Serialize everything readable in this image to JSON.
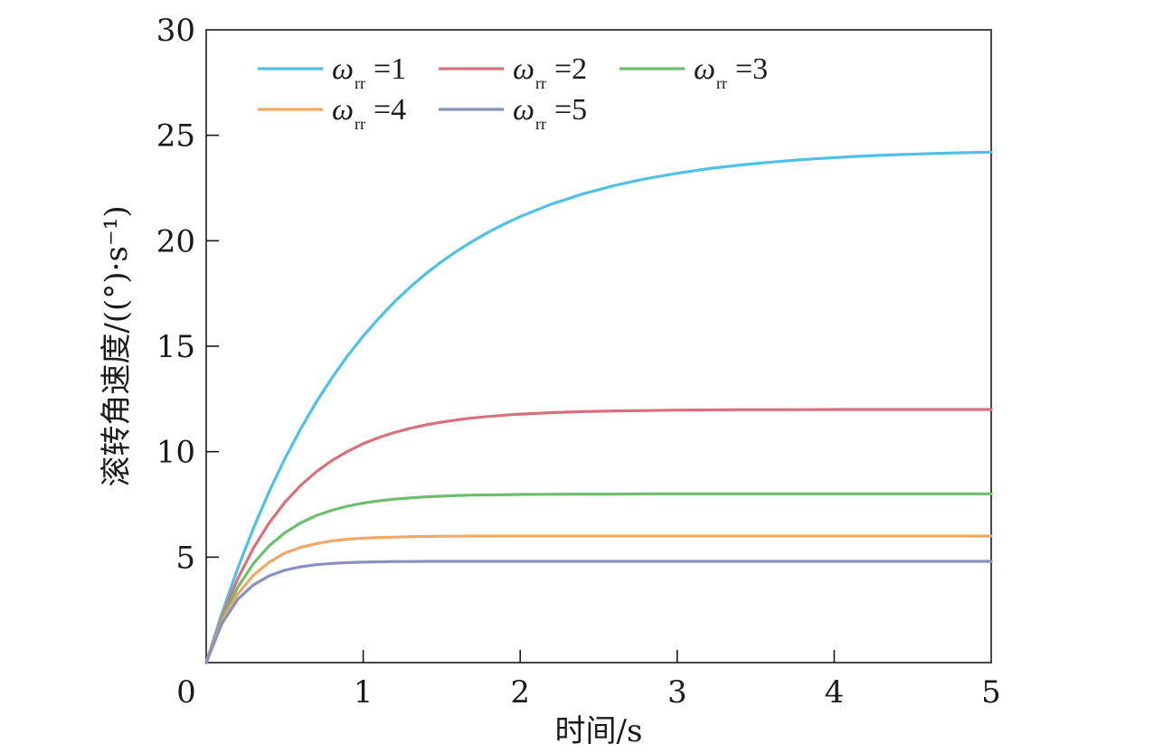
{
  "chart_data": {
    "type": "line",
    "xlabel": "时间/s",
    "ylabel": "滚转角速度/((°)·s⁻¹)",
    "xlim": [
      0,
      5
    ],
    "ylim": [
      0,
      30
    ],
    "xticks": [
      "0",
      "1",
      "2",
      "3",
      "4",
      "5"
    ],
    "yticks": [
      "5",
      "10",
      "15",
      "20",
      "25",
      "30"
    ],
    "grid": false,
    "legend_position": "top-left",
    "x": [
      0,
      0.1,
      0.2,
      0.3,
      0.4,
      0.5,
      0.6,
      0.7,
      0.8,
      0.9,
      1.0,
      1.1,
      1.2,
      1.3,
      1.4,
      1.5,
      1.6,
      1.7,
      1.8,
      1.9,
      2.0,
      2.2,
      2.4,
      2.6,
      2.8,
      3.0,
      3.2,
      3.4,
      3.6,
      3.8,
      4.0,
      4.2,
      4.4,
      4.6,
      4.8,
      5.0
    ],
    "series": [
      {
        "name": "ωrr=1",
        "symbol": "ω",
        "subscript": "rr",
        "suffix": "=1",
        "color": "#4fc1e9",
        "values": [
          0,
          2.34,
          4.45,
          6.36,
          8.09,
          9.65,
          11.06,
          12.34,
          13.49,
          14.54,
          15.48,
          16.33,
          17.11,
          17.81,
          18.44,
          19.01,
          19.53,
          19.99,
          20.42,
          20.8,
          21.14,
          21.74,
          22.22,
          22.62,
          22.94,
          23.2,
          23.42,
          23.59,
          23.73,
          23.85,
          23.94,
          24.02,
          24.08,
          24.13,
          24.17,
          24.2
        ]
      },
      {
        "name": "ωrr=2",
        "symbol": "ω",
        "subscript": "rr",
        "suffix": "=2",
        "color": "#d9707a",
        "values": [
          0,
          2.18,
          3.96,
          5.42,
          6.61,
          7.59,
          8.39,
          9.04,
          9.58,
          10.01,
          10.38,
          10.67,
          10.91,
          11.11,
          11.27,
          11.4,
          11.51,
          11.6,
          11.67,
          11.73,
          11.78,
          11.85,
          11.9,
          11.93,
          11.95,
          11.97,
          11.98,
          11.99,
          11.99,
          11.99,
          12.0,
          12.0,
          12.0,
          12.0,
          12.0,
          12.0
        ]
      },
      {
        "name": "ωrr=3",
        "symbol": "ω",
        "subscript": "rr",
        "suffix": "=3",
        "color": "#6cbf6e",
        "values": [
          0,
          2.04,
          3.56,
          4.69,
          5.53,
          6.15,
          6.62,
          6.97,
          7.22,
          7.42,
          7.56,
          7.67,
          7.75,
          7.81,
          7.86,
          7.89,
          7.92,
          7.94,
          7.95,
          7.96,
          7.97,
          7.98,
          7.99,
          7.99,
          8.0,
          8.0,
          8.0,
          8.0,
          8.0,
          8.0,
          8.0,
          8.0,
          8.0,
          8.0,
          8.0,
          8.0
        ]
      },
      {
        "name": "ωrr=4",
        "symbol": "ω",
        "subscript": "rr",
        "suffix": "=4",
        "color": "#f0a868",
        "values": [
          0,
          1.93,
          3.24,
          4.14,
          4.75,
          5.19,
          5.46,
          5.64,
          5.77,
          5.85,
          5.9,
          5.93,
          5.95,
          5.97,
          5.98,
          5.99,
          5.99,
          6.0,
          6.0,
          6.0,
          6.0,
          6.0,
          6.0,
          6.0,
          6.0,
          6.0,
          6.0,
          6.0,
          6.0,
          6.0,
          6.0,
          6.0,
          6.0,
          6.0,
          6.0,
          6.0
        ]
      },
      {
        "name": "ωrr=5",
        "symbol": "ω",
        "subscript": "rr",
        "suffix": "=5",
        "color": "#8a90c4",
        "values": [
          0,
          1.85,
          2.99,
          3.68,
          4.11,
          4.38,
          4.54,
          4.64,
          4.7,
          4.74,
          4.76,
          4.78,
          4.79,
          4.79,
          4.8,
          4.8,
          4.8,
          4.8,
          4.8,
          4.8,
          4.8,
          4.8,
          4.8,
          4.8,
          4.8,
          4.8,
          4.8,
          4.8,
          4.8,
          4.8,
          4.8,
          4.8,
          4.8,
          4.8,
          4.8,
          4.8
        ]
      }
    ]
  }
}
